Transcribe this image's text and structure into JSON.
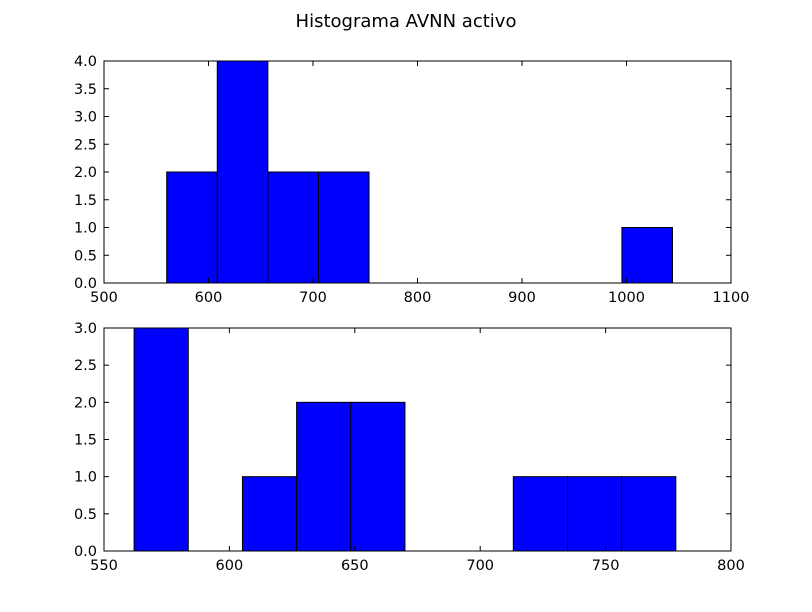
{
  "figure": {
    "title": "Histograma AVNN activo"
  },
  "colors": {
    "bar_fill": "#0000ff",
    "bar_edge": "#000000"
  },
  "chart_data": [
    {
      "type": "bar",
      "subtype": "histogram",
      "xlim": [
        500,
        1100
      ],
      "ylim": [
        0,
        4
      ],
      "xticks": [
        500,
        600,
        700,
        800,
        900,
        1000,
        1100
      ],
      "yticks": [
        0.0,
        0.5,
        1.0,
        1.5,
        2.0,
        2.5,
        3.0,
        3.5,
        4.0
      ],
      "xtick_labels": [
        "500",
        "600",
        "700",
        "800",
        "900",
        "1000",
        "1100"
      ],
      "ytick_labels": [
        "0.0",
        "0.5",
        "1.0",
        "1.5",
        "2.0",
        "2.5",
        "3.0",
        "3.5",
        "4.0"
      ],
      "bins": [
        {
          "start": 560.0,
          "end": 608.4,
          "count": 2
        },
        {
          "start": 608.4,
          "end": 656.8,
          "count": 4
        },
        {
          "start": 656.8,
          "end": 705.2,
          "count": 2
        },
        {
          "start": 705.2,
          "end": 753.6,
          "count": 2
        },
        {
          "start": 753.6,
          "end": 802.0,
          "count": 0
        },
        {
          "start": 802.0,
          "end": 850.4,
          "count": 0
        },
        {
          "start": 850.4,
          "end": 898.8,
          "count": 0
        },
        {
          "start": 898.8,
          "end": 947.2,
          "count": 0
        },
        {
          "start": 947.2,
          "end": 995.6,
          "count": 0
        },
        {
          "start": 995.6,
          "end": 1044.0,
          "count": 1
        }
      ]
    },
    {
      "type": "bar",
      "subtype": "histogram",
      "xlim": [
        550,
        800
      ],
      "ylim": [
        0,
        3
      ],
      "xticks": [
        550,
        600,
        650,
        700,
        750,
        800
      ],
      "yticks": [
        0.0,
        0.5,
        1.0,
        1.5,
        2.0,
        2.5,
        3.0
      ],
      "xtick_labels": [
        "550",
        "600",
        "650",
        "700",
        "750",
        "800"
      ],
      "ytick_labels": [
        "0.0",
        "0.5",
        "1.0",
        "1.5",
        "2.0",
        "2.5",
        "3.0"
      ],
      "bins": [
        {
          "start": 562.0,
          "end": 583.6,
          "count": 3
        },
        {
          "start": 583.6,
          "end": 605.2,
          "count": 0
        },
        {
          "start": 605.2,
          "end": 626.8,
          "count": 1
        },
        {
          "start": 626.8,
          "end": 648.4,
          "count": 2
        },
        {
          "start": 648.4,
          "end": 670.0,
          "count": 2
        },
        {
          "start": 670.0,
          "end": 691.6,
          "count": 0
        },
        {
          "start": 691.6,
          "end": 713.2,
          "count": 0
        },
        {
          "start": 713.2,
          "end": 734.8,
          "count": 1
        },
        {
          "start": 734.8,
          "end": 756.4,
          "count": 1
        },
        {
          "start": 756.4,
          "end": 778.0,
          "count": 1
        }
      ]
    }
  ]
}
